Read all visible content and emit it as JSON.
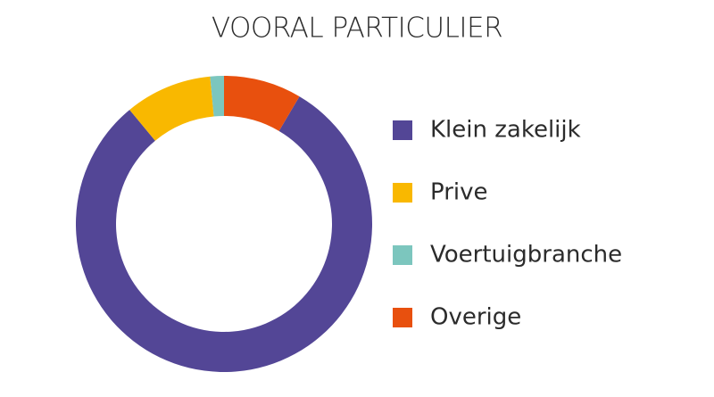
{
  "chart_data": {
    "type": "donut",
    "title": "VOORAL PARTICULIER",
    "categories": [
      "Klein zakelijk",
      "Prive",
      "Voertuigbranche",
      "Overige"
    ],
    "values": [
      80.5,
      9.5,
      1.5,
      8.5
    ],
    "colors": [
      "#534696",
      "#f9b800",
      "#7cc6be",
      "#e8500e"
    ],
    "legend": "right"
  }
}
